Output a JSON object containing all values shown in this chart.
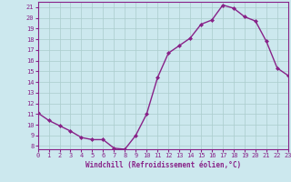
{
  "x": [
    0,
    1,
    2,
    3,
    4,
    5,
    6,
    7,
    8,
    9,
    10,
    11,
    12,
    13,
    14,
    15,
    16,
    17,
    18,
    19,
    20,
    21,
    22,
    23
  ],
  "y": [
    11.1,
    10.4,
    9.9,
    9.4,
    8.8,
    8.6,
    8.6,
    7.8,
    7.7,
    9.0,
    11.0,
    14.4,
    16.7,
    17.4,
    18.1,
    19.4,
    19.8,
    21.2,
    20.9,
    20.1,
    19.7,
    17.8,
    15.3,
    14.6
  ],
  "xlim": [
    0,
    23
  ],
  "ylim": [
    7.7,
    21.5
  ],
  "yticks": [
    8,
    9,
    10,
    11,
    12,
    13,
    14,
    15,
    16,
    17,
    18,
    19,
    20,
    21
  ],
  "xticks": [
    0,
    1,
    2,
    3,
    4,
    5,
    6,
    7,
    8,
    9,
    10,
    11,
    12,
    13,
    14,
    15,
    16,
    17,
    18,
    19,
    20,
    21,
    22,
    23
  ],
  "xlabel": "Windchill (Refroidissement éolien,°C)",
  "line_color": "#882288",
  "marker": "D",
  "marker_size": 2.0,
  "line_width": 1.0,
  "bg_color": "#cce8ee",
  "grid_color": "#aacccc",
  "tick_fontsize": 5.0,
  "xlabel_fontsize": 5.5
}
